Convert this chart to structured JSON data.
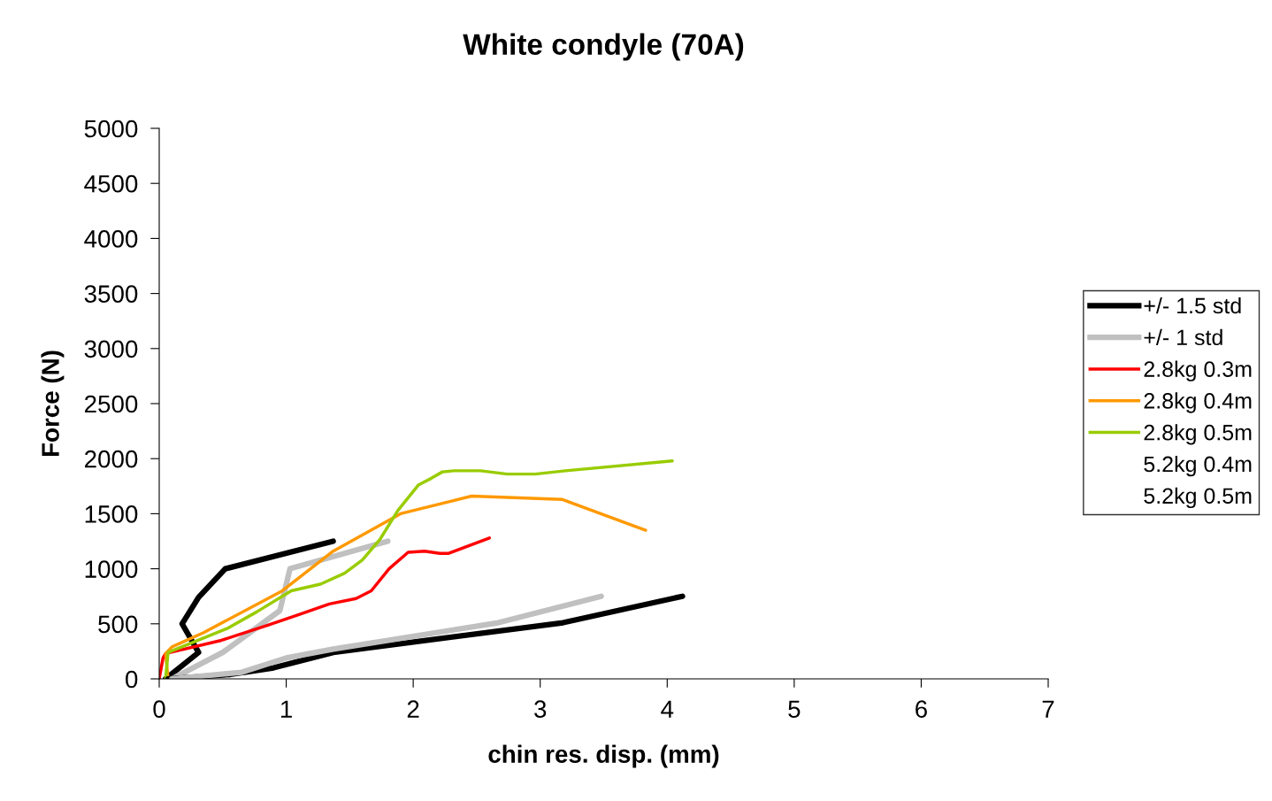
{
  "chart_data": {
    "type": "line",
    "title": "White condyle (70A)",
    "xlabel": "chin res. disp. (mm)",
    "ylabel": "Force (N)",
    "xlim": [
      0,
      7
    ],
    "xticks": [
      0,
      1,
      2,
      3,
      4,
      5,
      6,
      7
    ],
    "ylim": [
      0,
      5000
    ],
    "yticks": [
      0,
      500,
      1000,
      1500,
      2000,
      2500,
      3000,
      3500,
      4000,
      4500,
      5000
    ],
    "grid": false,
    "legend": "right",
    "line_style": "solid",
    "marker": "none",
    "series": [
      {
        "name": "+/- 1.5 std",
        "color": "#000000",
        "x": [
          0.05,
          0.31,
          0.18,
          0.31,
          0.52,
          1.37
        ],
        "values": [
          0,
          240,
          500,
          740,
          1000,
          1250
        ]
      },
      {
        "name": "+/- 1 std",
        "color": "#c0c0c0",
        "x": [
          0.1,
          0.5,
          0.95,
          1.03,
          1.8
        ],
        "values": [
          0,
          240,
          620,
          1000,
          1250
        ]
      },
      {
        "name": "2.8kg 0.3m",
        "color": "#ff0000",
        "x": [
          0,
          0.03,
          0.05,
          0.49,
          0.86,
          1.09,
          1.34,
          1.55,
          1.67,
          1.81,
          1.96,
          2.09,
          2.21,
          2.28,
          2.6
        ],
        "values": [
          0,
          190,
          230,
          350,
          490,
          580,
          680,
          730,
          800,
          1000,
          1150,
          1160,
          1140,
          1140,
          1280
        ]
      },
      {
        "name": "2.8kg 0.4m",
        "color": "#ff9900",
        "x": [
          0.07,
          0.05,
          0.1,
          0.35,
          0.97,
          1.37,
          1.9,
          2.46,
          3.17,
          3.83
        ],
        "values": [
          0,
          230,
          290,
          420,
          800,
          1160,
          1500,
          1660,
          1630,
          1350
        ]
      },
      {
        "name": "2.8kg 0.5m",
        "color": "#99cc00",
        "x": [
          0.05,
          0.07,
          0.54,
          0.77,
          1.04,
          1.27,
          1.46,
          1.6,
          1.74,
          1.88,
          2.04,
          2.14,
          2.23,
          2.32,
          2.53,
          2.74,
          2.96,
          3.2,
          4.04
        ],
        "values": [
          0,
          240,
          460,
          610,
          800,
          860,
          960,
          1080,
          1270,
          1530,
          1760,
          1820,
          1880,
          1890,
          1890,
          1860,
          1860,
          1890,
          1980
        ]
      },
      {
        "name": "5.2kg 0.4m"
      },
      {
        "name": "5.2kg 0.5m"
      },
      {
        "color": "#000000",
        "x": [
          0.07,
          0.56,
          0.9,
          1.37,
          3.18,
          4.12
        ],
        "values": [
          0,
          40,
          100,
          240,
          510,
          750
        ]
      },
      {
        "color": "#c0c0c0",
        "x": [
          0.1,
          0.65,
          1.0,
          1.37,
          2.67,
          3.48
        ],
        "values": [
          0,
          60,
          190,
          270,
          510,
          750
        ]
      }
    ]
  }
}
